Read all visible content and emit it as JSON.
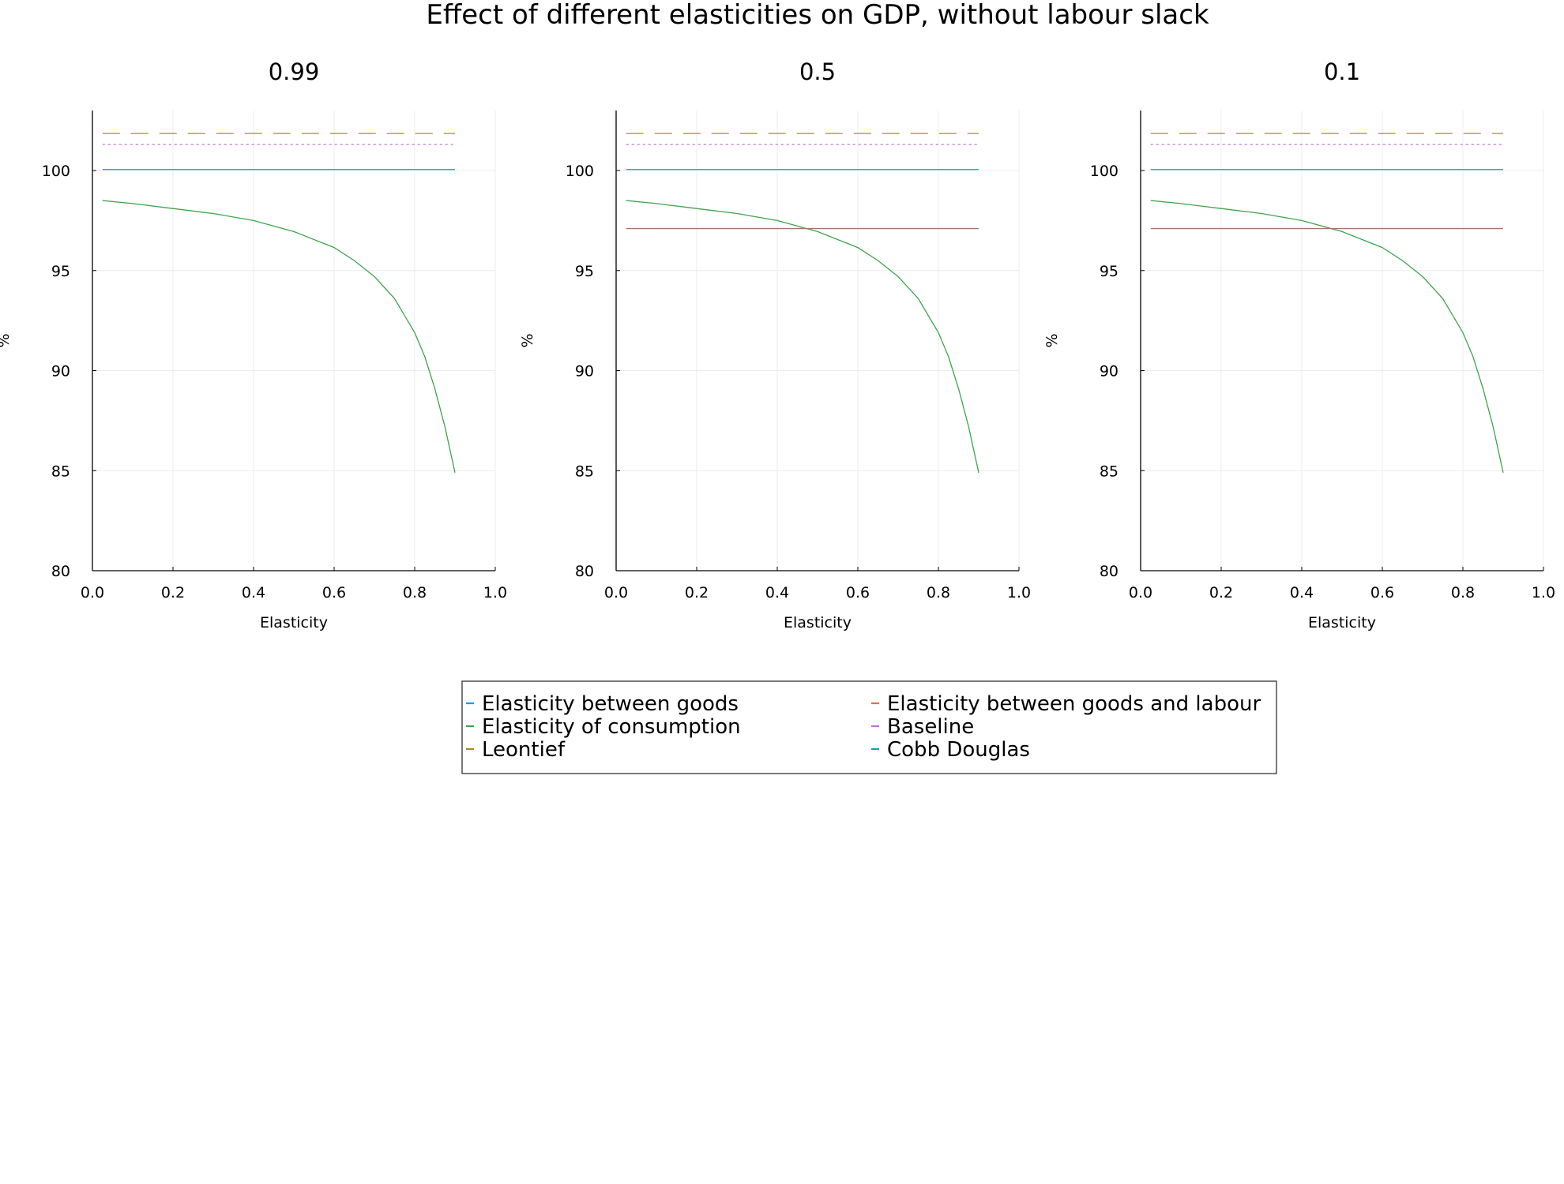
{
  "title": "Effect of different elasticities on GDP, without labour slack",
  "colors": {
    "goods": "#009af9",
    "goods_labour": "#e26f46",
    "consumption": "#3da44d",
    "baseline": "#c271d2",
    "leontief": "#ac8d18",
    "cobb_douglas": "#00a9ad",
    "flat_series": "#a0786a"
  },
  "legend": {
    "items": [
      {
        "label": "Elasticity between goods",
        "color": "#009af9"
      },
      {
        "label": "Elasticity between goods and labour",
        "color": "#e26f46"
      },
      {
        "label": "Elasticity of consumption",
        "color": "#3da44d"
      },
      {
        "label": "Baseline",
        "color": "#c271d2"
      },
      {
        "label": "Leontief",
        "color": "#ac8d18"
      },
      {
        "label": "Cobb Douglas",
        "color": "#00a9ad"
      }
    ]
  },
  "chart_data": [
    {
      "type": "line",
      "title": "0.99",
      "xlabel": "Elasticity",
      "ylabel": "%",
      "xlim": [
        0,
        1.0
      ],
      "ylim": [
        80,
        103
      ],
      "xticks": [
        "0.0",
        "0.2",
        "0.4",
        "0.6",
        "0.8",
        "1.0"
      ],
      "yticks": [
        "80",
        "85",
        "90",
        "95",
        "100"
      ],
      "grid": true,
      "show_flat_series": false,
      "series": [
        {
          "name": "Elasticity of consumption",
          "x": [
            0.025,
            0.1,
            0.2,
            0.3,
            0.4,
            0.5,
            0.6,
            0.65,
            0.7,
            0.75,
            0.8,
            0.825,
            0.85,
            0.875,
            0.9
          ],
          "values": [
            98.5,
            98.35,
            98.1,
            97.85,
            97.5,
            96.95,
            96.15,
            95.5,
            94.7,
            93.6,
            91.9,
            90.7,
            89.1,
            87.2,
            84.9
          ]
        },
        {
          "name": "Baseline",
          "x": [
            0.025,
            0.9
          ],
          "values": [
            101.3,
            101.3
          ]
        },
        {
          "name": "Leontief",
          "x": [
            0.025,
            0.9
          ],
          "values": [
            101.85,
            101.85
          ]
        },
        {
          "name": "Cobb Douglas",
          "x": [
            0.025,
            0.9
          ],
          "values": [
            100.05,
            100.05
          ]
        }
      ]
    },
    {
      "type": "line",
      "title": "0.5",
      "xlabel": "Elasticity",
      "ylabel": "%",
      "xlim": [
        0,
        1.0
      ],
      "ylim": [
        80,
        103
      ],
      "xticks": [
        "0.0",
        "0.2",
        "0.4",
        "0.6",
        "0.8",
        "1.0"
      ],
      "yticks": [
        "80",
        "85",
        "90",
        "95",
        "100"
      ],
      "grid": true,
      "show_flat_series": true,
      "series": [
        {
          "name": "Elasticity of consumption",
          "x": [
            0.025,
            0.1,
            0.2,
            0.3,
            0.4,
            0.5,
            0.6,
            0.65,
            0.7,
            0.75,
            0.8,
            0.825,
            0.85,
            0.875,
            0.9
          ],
          "values": [
            98.5,
            98.35,
            98.1,
            97.85,
            97.5,
            96.95,
            96.15,
            95.5,
            94.7,
            93.6,
            91.9,
            90.7,
            89.1,
            87.2,
            84.9
          ]
        },
        {
          "name": "",
          "x": [
            0.025,
            0.9
          ],
          "values": [
            97.1,
            97.1
          ]
        },
        {
          "name": "Baseline",
          "x": [
            0.025,
            0.9
          ],
          "values": [
            101.3,
            101.3
          ]
        },
        {
          "name": "Leontief",
          "x": [
            0.025,
            0.9
          ],
          "values": [
            101.85,
            101.85
          ]
        },
        {
          "name": "Cobb Douglas",
          "x": [
            0.025,
            0.9
          ],
          "values": [
            100.05,
            100.05
          ]
        }
      ]
    },
    {
      "type": "line",
      "title": "0.1",
      "xlabel": "Elasticity",
      "ylabel": "%",
      "xlim": [
        0,
        1.0
      ],
      "ylim": [
        80,
        103
      ],
      "xticks": [
        "0.0",
        "0.2",
        "0.4",
        "0.6",
        "0.8",
        "1.0"
      ],
      "yticks": [
        "80",
        "85",
        "90",
        "95",
        "100"
      ],
      "grid": true,
      "show_flat_series": true,
      "series": [
        {
          "name": "Elasticity of consumption",
          "x": [
            0.025,
            0.1,
            0.2,
            0.3,
            0.4,
            0.5,
            0.6,
            0.65,
            0.7,
            0.75,
            0.8,
            0.825,
            0.85,
            0.875,
            0.9
          ],
          "values": [
            98.5,
            98.35,
            98.1,
            97.85,
            97.5,
            96.95,
            96.15,
            95.5,
            94.7,
            93.6,
            91.9,
            90.7,
            89.1,
            87.2,
            84.9
          ]
        },
        {
          "name": "",
          "x": [
            0.025,
            0.9
          ],
          "values": [
            97.1,
            97.1
          ]
        },
        {
          "name": "Baseline",
          "x": [
            0.025,
            0.9
          ],
          "values": [
            101.3,
            101.3
          ]
        },
        {
          "name": "Leontief",
          "x": [
            0.025,
            0.9
          ],
          "values": [
            101.85,
            101.85
          ]
        },
        {
          "name": "Cobb Douglas",
          "x": [
            0.025,
            0.9
          ],
          "values": [
            100.05,
            100.05
          ]
        }
      ]
    }
  ]
}
